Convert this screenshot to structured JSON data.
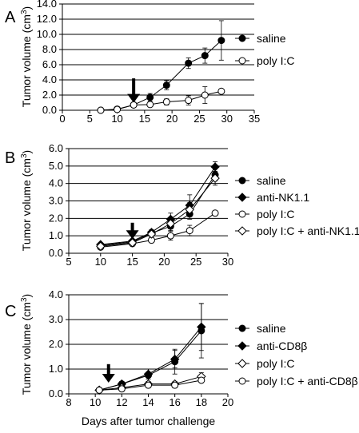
{
  "chart_data": [
    {
      "type": "line",
      "panel_label": "A",
      "xlabel": "",
      "ylabel": "Tumor volume (cm³)",
      "xlim": [
        0,
        35
      ],
      "ylim": [
        0,
        14
      ],
      "xticks": [
        0,
        5,
        10,
        15,
        20,
        25,
        30,
        35
      ],
      "xtick_labels": [
        "0",
        "5",
        "10",
        "15",
        "20",
        "25",
        "30",
        "35"
      ],
      "yticks": [
        0,
        2,
        4,
        6,
        8,
        10,
        12,
        14
      ],
      "ytick_labels": [
        "0.0",
        "2.0",
        "4.0",
        "6.0",
        "8.0",
        "10.0",
        "12.0",
        "14.0"
      ],
      "grid": "horizontal",
      "legend_position": "right",
      "arrow_x": 13,
      "series": [
        {
          "name": "saline",
          "marker": "filled-circle",
          "x": [
            7,
            10,
            13,
            16,
            19,
            23,
            26,
            29
          ],
          "y": [
            0.0,
            0.15,
            0.7,
            1.7,
            3.3,
            6.2,
            7.2,
            9.2
          ],
          "err": [
            0,
            0.05,
            0.2,
            0.5,
            0.6,
            0.7,
            1.0,
            2.6
          ]
        },
        {
          "name": "poly I:C",
          "marker": "open-circle",
          "x": [
            7,
            10,
            13,
            16,
            19,
            23,
            26,
            29
          ],
          "y": [
            0.0,
            0.1,
            0.7,
            0.75,
            1.1,
            1.3,
            2.0,
            2.5
          ],
          "err": [
            0,
            0.05,
            0.15,
            0.3,
            0.4,
            0.6,
            1.1,
            0.3
          ]
        }
      ]
    },
    {
      "type": "line",
      "panel_label": "B",
      "xlabel": "",
      "ylabel": "Tumor volume (cm³)",
      "xlim": [
        5,
        30
      ],
      "ylim": [
        0,
        6
      ],
      "xticks": [
        5,
        10,
        15,
        20,
        25,
        30
      ],
      "xtick_labels": [
        "5",
        "10",
        "15",
        "20",
        "25",
        "30"
      ],
      "yticks": [
        0,
        1,
        2,
        3,
        4,
        5,
        6
      ],
      "ytick_labels": [
        "0.0",
        "1.0",
        "2.0",
        "3.0",
        "4.0",
        "5.0",
        "6.0"
      ],
      "grid": "horizontal",
      "legend_position": "right",
      "arrow_x": 15,
      "series": [
        {
          "name": "saline",
          "marker": "filled-circle",
          "x": [
            10,
            15,
            18,
            21,
            24,
            28
          ],
          "y": [
            0.45,
            0.65,
            1.15,
            1.55,
            2.25,
            4.5
          ],
          "err": [
            0.1,
            0.1,
            0.15,
            0.25,
            0.3,
            0.35
          ]
        },
        {
          "name": "anti-NK1.1",
          "marker": "filled-diamond",
          "x": [
            10,
            15,
            18,
            21,
            24,
            28
          ],
          "y": [
            0.5,
            0.7,
            1.2,
            1.95,
            2.75,
            4.95
          ],
          "err": [
            0.1,
            0.1,
            0.15,
            0.35,
            0.6,
            0.3
          ]
        },
        {
          "name": "poly I:C",
          "marker": "open-circle",
          "x": [
            10,
            15,
            18,
            21,
            24,
            28
          ],
          "y": [
            0.35,
            0.55,
            0.75,
            1.0,
            1.3,
            2.3
          ],
          "err": [
            0.1,
            0.1,
            0.15,
            0.25,
            0.3,
            0.1
          ]
        },
        {
          "name": "poly I:C + anti-NK1.1",
          "marker": "open-diamond",
          "x": [
            10,
            15,
            18,
            21,
            24,
            28
          ],
          "y": [
            0.4,
            0.6,
            1.1,
            1.7,
            2.5,
            4.3
          ],
          "err": [
            0.1,
            0.1,
            0.15,
            0.3,
            0.4,
            0.4
          ]
        }
      ]
    },
    {
      "type": "line",
      "panel_label": "C",
      "xlabel": "Days after tumor challenge",
      "ylabel": "Tumor volume (cm³)",
      "xlim": [
        8,
        20
      ],
      "ylim": [
        0,
        4
      ],
      "xticks": [
        8,
        10,
        12,
        14,
        16,
        18,
        20
      ],
      "xtick_labels": [
        "8",
        "10",
        "12",
        "14",
        "16",
        "18",
        "20"
      ],
      "yticks": [
        0,
        1,
        2,
        3,
        4
      ],
      "ytick_labels": [
        "0.0",
        "1.0",
        "2.0",
        "3.0",
        "4.0"
      ],
      "grid": "horizontal",
      "legend_position": "right",
      "arrow_x": 11,
      "series": [
        {
          "name": "saline",
          "marker": "filled-circle",
          "x": [
            10.3,
            12,
            14,
            16,
            18
          ],
          "y": [
            0.15,
            0.4,
            0.75,
            1.3,
            2.55
          ],
          "err": [
            0.03,
            0.05,
            0.25,
            0.5,
            1.1
          ]
        },
        {
          "name": "anti-CD8β",
          "marker": "filled-diamond",
          "x": [
            10.3,
            12,
            14,
            16,
            18
          ],
          "y": [
            0.15,
            0.4,
            0.8,
            1.4,
            2.7
          ],
          "err": [
            0.03,
            0.05,
            0.2,
            0.35,
            0.95
          ]
        },
        {
          "name": "poly I:C",
          "marker": "open-diamond",
          "x": [
            10.3,
            12,
            14,
            16,
            18
          ],
          "y": [
            0.15,
            0.25,
            0.4,
            0.4,
            0.7
          ],
          "err": [
            0.03,
            0.05,
            0.1,
            0.1,
            0.15
          ]
        },
        {
          "name": "poly I:C + anti-CD8β",
          "marker": "open-circle",
          "x": [
            10.3,
            12,
            14,
            16,
            18
          ],
          "y": [
            0.15,
            0.2,
            0.35,
            0.35,
            0.55
          ],
          "err": [
            0.03,
            0.05,
            0.1,
            0.1,
            0.1
          ]
        }
      ]
    }
  ]
}
